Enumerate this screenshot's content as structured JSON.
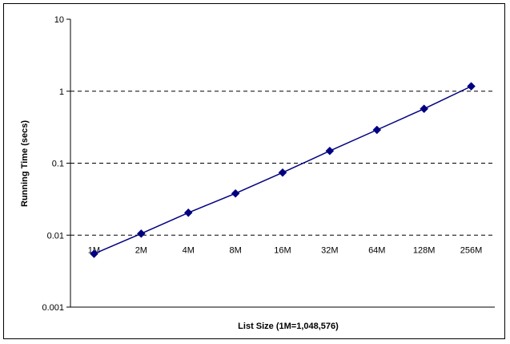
{
  "chart_data": {
    "type": "line",
    "title": "",
    "xlabel": "List Size (1M=1,048,576)",
    "ylabel": "Running Time (secs)",
    "y_scale": "log",
    "ylim": [
      0.001,
      10
    ],
    "y_ticks": [
      "0.001",
      "0.01",
      "0.1",
      "1",
      "10"
    ],
    "y_tick_values": [
      0.001,
      0.01,
      0.1,
      1,
      10
    ],
    "grid": "horizontal dashed",
    "legend": "none",
    "categories": [
      "1M",
      "2M",
      "4M",
      "8M",
      "16M",
      "32M",
      "64M",
      "128M",
      "256M"
    ],
    "series": [
      {
        "values": [
          0.0055,
          0.0105,
          0.0205,
          0.038,
          0.074,
          0.148,
          0.29,
          0.57,
          1.17
        ],
        "color": "#000080",
        "marker": "diamond"
      }
    ]
  }
}
